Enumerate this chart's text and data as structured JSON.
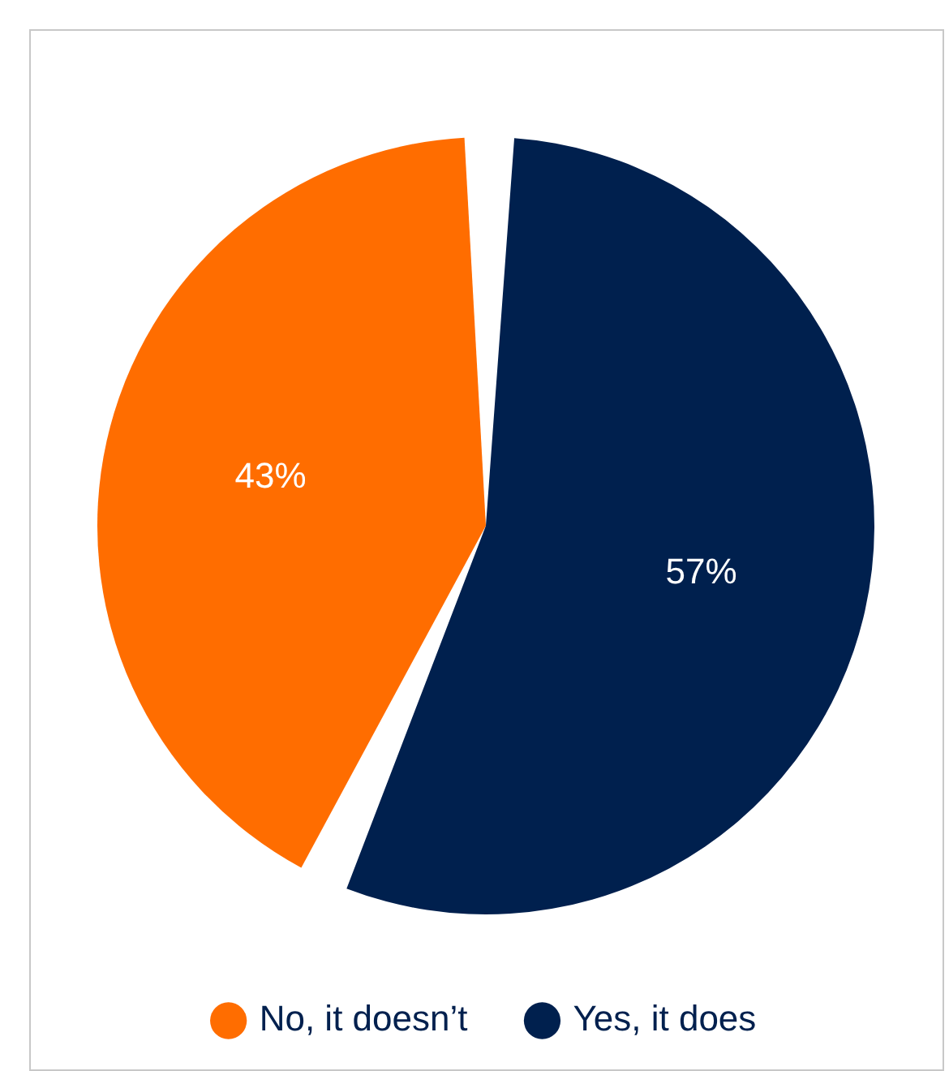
{
  "chart_data": {
    "type": "pie",
    "categories": [
      "No, it doesn’t",
      "Yes, it does"
    ],
    "values": [
      43,
      57
    ],
    "colors": [
      "#ff6d00",
      "#00204e"
    ],
    "value_labels": [
      "43%",
      "57%"
    ],
    "legend": "bottom"
  }
}
